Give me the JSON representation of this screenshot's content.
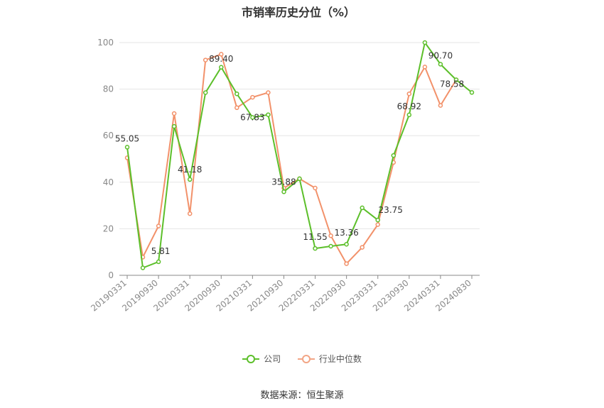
{
  "chart_data": {
    "type": "line",
    "title": "市销率历史分位（%）",
    "ylim": [
      0,
      100
    ],
    "yticks": [
      0,
      20,
      40,
      60,
      80,
      100
    ],
    "grid": true,
    "legend_position": "bottom",
    "x": [
      "20190331",
      "20190630",
      "20190930",
      "20191231",
      "20200331",
      "20200630",
      "20200930",
      "20201231",
      "20210331",
      "20210630",
      "20210930",
      "20211231",
      "20220331",
      "20220630",
      "20220930",
      "20221231",
      "20230331",
      "20230630",
      "20230930",
      "20231231",
      "20240331",
      "20240630",
      "20240830"
    ],
    "x_tick_labels": [
      "20190331",
      "20190930",
      "20200331",
      "20200930",
      "20210331",
      "20210930",
      "20220331",
      "20220930",
      "20230331",
      "20230930",
      "20240331",
      "20240830"
    ],
    "x_tick_indices": [
      0,
      2,
      4,
      6,
      8,
      10,
      12,
      14,
      16,
      18,
      20,
      22
    ],
    "series": [
      {
        "name": "公司",
        "color": "#5cbf2a",
        "values": [
          55.05,
          3.2,
          5.81,
          64.0,
          41.18,
          78.5,
          89.4,
          78.0,
          67.83,
          69.0,
          35.88,
          41.5,
          11.55,
          12.5,
          13.36,
          29.0,
          23.75,
          51.5,
          68.92,
          100.0,
          90.7,
          84.0,
          78.58
        ]
      },
      {
        "name": "行业中位数",
        "color": "#f2916a",
        "values": [
          50.5,
          7.8,
          21.2,
          69.5,
          26.5,
          92.5,
          95.0,
          72.0,
          76.5,
          78.5,
          37.5,
          41.5,
          37.5,
          17.0,
          5.0,
          12.0,
          21.8,
          48.5,
          78.0,
          89.5,
          73.0,
          84.0,
          null
        ]
      }
    ],
    "data_labels": [
      {
        "index": 0,
        "text": "55.05"
      },
      {
        "index": 2,
        "text": "5.81"
      },
      {
        "index": 4,
        "text": "41.18"
      },
      {
        "index": 6,
        "text": "89.40"
      },
      {
        "index": 8,
        "text": "67.83"
      },
      {
        "index": 10,
        "text": "35.88"
      },
      {
        "index": 12,
        "text": "11.55"
      },
      {
        "index": 14,
        "text": "13.36"
      },
      {
        "index": 16,
        "text": "23.75"
      },
      {
        "index": 18,
        "text": "68.92"
      },
      {
        "index": 20,
        "text": "90.70"
      },
      {
        "index": 22,
        "text": "78.58"
      }
    ],
    "source": "数据来源：恒生聚源"
  }
}
